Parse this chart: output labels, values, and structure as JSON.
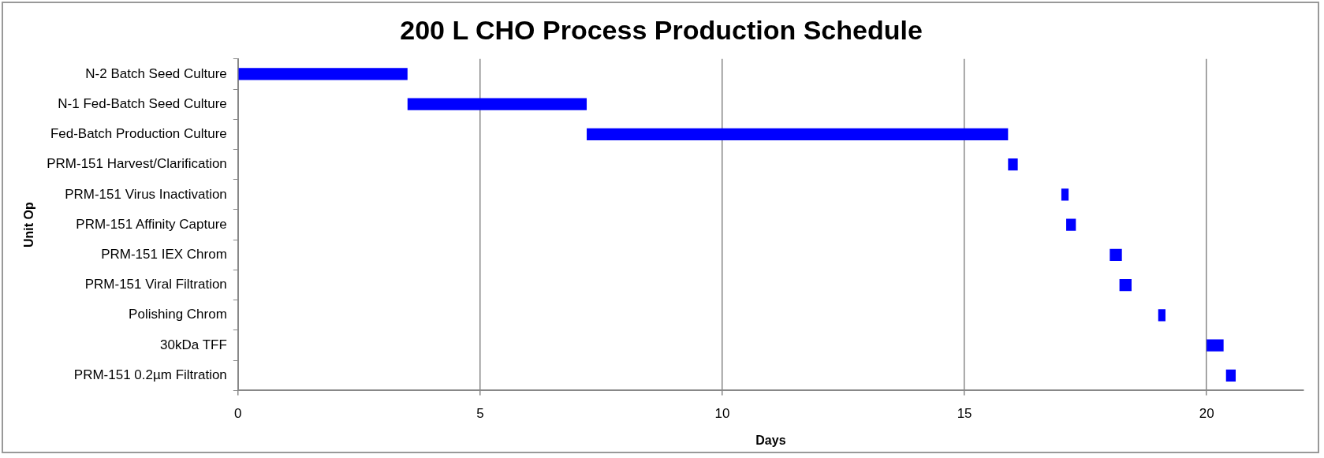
{
  "chart_data": {
    "type": "bar",
    "orientation": "horizontal",
    "title": "200 L CHO Process Production Schedule",
    "xlabel": "Days",
    "ylabel": "Unit Op",
    "categories": [
      "N-2 Batch Seed Culture",
      "N-1 Fed-Batch Seed Culture",
      "Fed-Batch Production Culture",
      "PRM-151 Harvest/Clarification",
      "PRM-151 Virus Inactivation",
      "PRM-151 Affinity Capture",
      "PRM-151 IEX Chrom",
      "PRM-151 Viral Filtration",
      "Polishing Chrom",
      "30kDa TFF",
      "PRM-151 0.2µm Filtration"
    ],
    "base": [
      0,
      3.5,
      7.2,
      15.9,
      17.0,
      17.1,
      18.0,
      18.2,
      19.0,
      20.0,
      20.4
    ],
    "values": [
      3.5,
      3.7,
      8.7,
      0.2,
      0.15,
      0.2,
      0.25,
      0.25,
      0.15,
      0.35,
      0.2
    ],
    "color": "#0000ff",
    "xlim": [
      0,
      22
    ],
    "xticks": [
      0,
      5,
      10,
      15,
      20
    ],
    "grid": "x",
    "legend": false
  }
}
